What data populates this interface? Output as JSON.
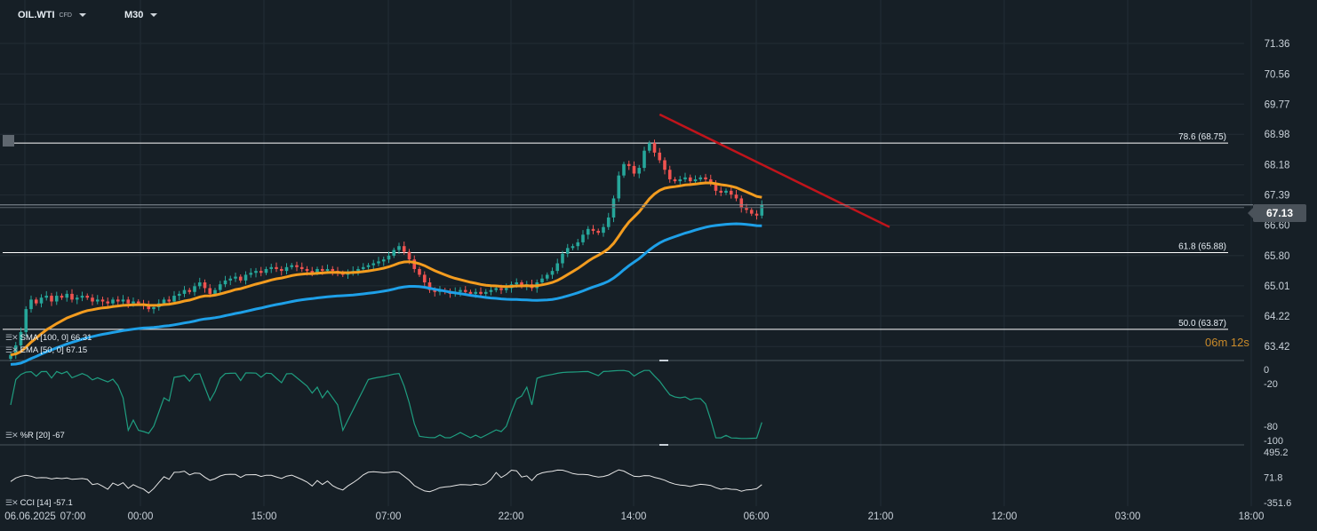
{
  "header": {
    "symbol": "OIL.WTI",
    "symbol_tag": "CFD",
    "timeframe": "M30"
  },
  "price_scale": [
    "71.36",
    "70.56",
    "69.77",
    "68.98",
    "68.18",
    "67.39",
    "66.60",
    "65.80",
    "65.01",
    "64.22",
    "63.42"
  ],
  "current_price": "67.13",
  "countdown": {
    "minutes": "06m",
    "seconds": "12s"
  },
  "fib_levels": [
    {
      "label": "78.6 (68.75)",
      "value": 68.75
    },
    {
      "label": "61.8 (65.88)",
      "value": 65.88
    },
    {
      "label": "50.0 (63.87)",
      "value": 63.87
    }
  ],
  "indicators": {
    "sma": "SMA [100, 0] 66.31",
    "ema": "EMA [50, 0] 67.15",
    "wr": "%R [20] -67",
    "cci": "CCI [14] -57.1"
  },
  "wr_scale": [
    "0",
    "-20",
    "-80",
    "-100"
  ],
  "cci_scale": [
    "495.2",
    "71.8",
    "-351.6"
  ],
  "time_axis": [
    "06.06.2025",
    "07:00",
    "00:00",
    "15:00",
    "07:00",
    "22:00",
    "14:00",
    "06:00",
    "21:00",
    "12:00",
    "03:00",
    "18:00"
  ],
  "colors": {
    "background": "#161f26",
    "bull": "#26a69a",
    "bear": "#ef5350",
    "ema": "#f39c1f",
    "sma": "#1ea0e8",
    "trendline": "#c0141b",
    "wr_line": "#1f9e80",
    "cci_line": "#e6e6e6",
    "fib": "#ffffff"
  },
  "chart_data": {
    "type": "candlestick",
    "timeframe": "M30",
    "ylim": [
      63.1,
      71.8
    ],
    "closes": [
      63.2,
      63.45,
      63.8,
      64.4,
      64.65,
      64.55,
      64.7,
      64.75,
      64.6,
      64.75,
      64.7,
      64.8,
      64.65,
      64.7,
      64.75,
      64.7,
      64.6,
      64.65,
      64.6,
      64.55,
      64.65,
      64.6,
      64.65,
      64.55,
      64.6,
      64.55,
      64.5,
      64.4,
      64.45,
      64.55,
      64.65,
      64.6,
      64.75,
      64.8,
      64.9,
      64.85,
      65.0,
      65.1,
      64.95,
      64.8,
      64.9,
      65.05,
      65.15,
      65.2,
      65.25,
      65.15,
      65.3,
      65.35,
      65.4,
      65.35,
      65.45,
      65.5,
      65.45,
      65.4,
      65.5,
      65.55,
      65.5,
      65.45,
      65.4,
      65.35,
      65.45,
      65.4,
      65.45,
      65.4,
      65.35,
      65.3,
      65.35,
      65.4,
      65.45,
      65.5,
      65.55,
      65.6,
      65.65,
      65.7,
      65.8,
      65.95,
      66.05,
      65.9,
      65.7,
      65.45,
      65.3,
      65.1,
      64.9,
      64.85,
      64.9,
      64.85,
      64.8,
      64.85,
      64.9,
      64.85,
      64.8,
      64.85,
      64.8,
      64.85,
      64.9,
      64.95,
      64.9,
      64.95,
      65.05,
      65.1,
      65.0,
      65.05,
      64.95,
      65.1,
      65.2,
      65.3,
      65.4,
      65.6,
      65.85,
      66.0,
      66.05,
      66.15,
      66.35,
      66.5,
      66.45,
      66.4,
      66.55,
      66.8,
      67.3,
      67.9,
      68.2,
      68.15,
      67.95,
      68.1,
      68.55,
      68.75,
      68.5,
      68.3,
      68.05,
      67.8,
      67.75,
      67.8,
      67.85,
      67.75,
      67.8,
      67.85,
      67.8,
      67.7,
      67.5,
      67.45,
      67.5,
      67.4,
      67.3,
      67.05,
      67.0,
      66.9,
      66.85,
      67.13
    ],
    "series": [
      {
        "name": "SMA [100, 0]",
        "last": 66.31
      },
      {
        "name": "EMA [50, 0]",
        "last": 67.15
      }
    ],
    "trendline": {
      "from": [
        127,
        69.5
      ],
      "to": [
        172,
        66.55
      ]
    }
  }
}
